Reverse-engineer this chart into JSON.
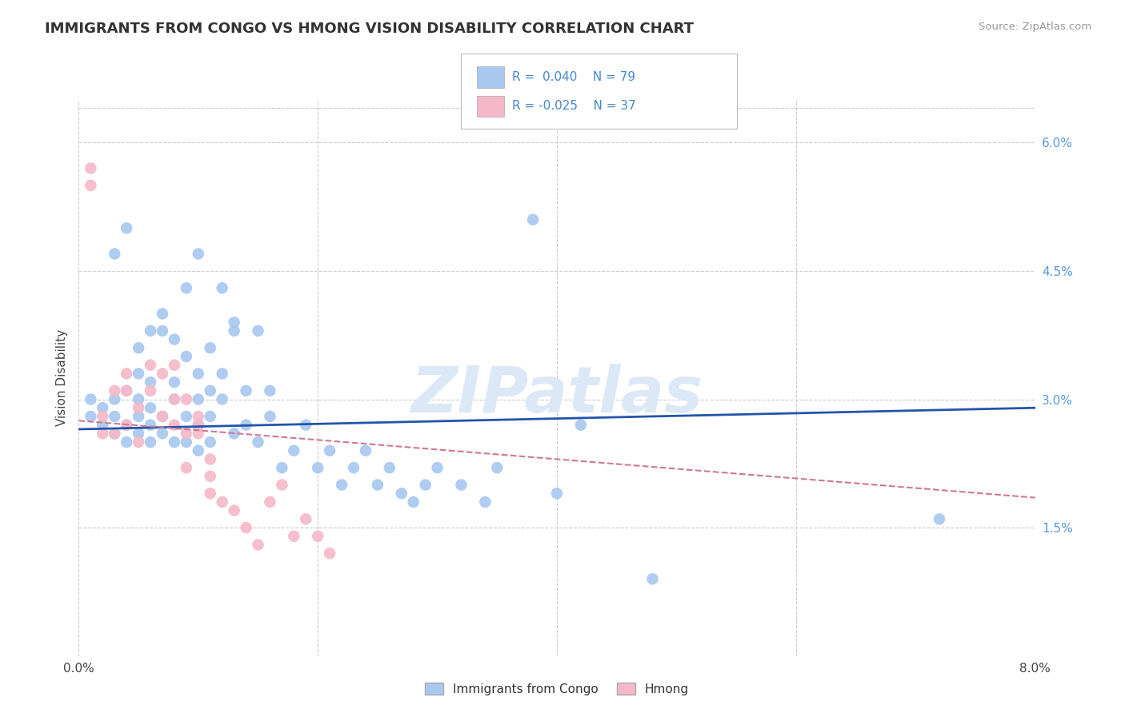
{
  "title": "IMMIGRANTS FROM CONGO VS HMONG VISION DISABILITY CORRELATION CHART",
  "source": "Source: ZipAtlas.com",
  "ylabel": "Vision Disability",
  "xmin": 0.0,
  "xmax": 0.08,
  "ymin": 0.0,
  "ymax": 0.065,
  "xticks": [
    0.0,
    0.02,
    0.04,
    0.06,
    0.08
  ],
  "yticks_right": [
    0.015,
    0.03,
    0.045,
    0.06
  ],
  "ytick_right_labels": [
    "1.5%",
    "3.0%",
    "4.5%",
    "6.0%"
  ],
  "grid_color": "#cccccc",
  "background_color": "#ffffff",
  "blue_color": "#A8C8F0",
  "pink_color": "#F5B8C8",
  "blue_line_color": "#2255AA",
  "pink_line_color": "#D07890",
  "watermark_color": "#dce8f5",
  "legend_label1": "Immigrants from Congo",
  "legend_label2": "Hmong",
  "blue_scatter_x": [
    0.001,
    0.001,
    0.002,
    0.002,
    0.003,
    0.003,
    0.003,
    0.004,
    0.004,
    0.004,
    0.005,
    0.005,
    0.005,
    0.005,
    0.006,
    0.006,
    0.006,
    0.006,
    0.007,
    0.007,
    0.007,
    0.008,
    0.008,
    0.008,
    0.009,
    0.009,
    0.009,
    0.01,
    0.01,
    0.01,
    0.01,
    0.011,
    0.011,
    0.011,
    0.012,
    0.012,
    0.013,
    0.013,
    0.014,
    0.014,
    0.015,
    0.015,
    0.016,
    0.016,
    0.017,
    0.018,
    0.019,
    0.02,
    0.021,
    0.022,
    0.023,
    0.024,
    0.025,
    0.026,
    0.027,
    0.028,
    0.029,
    0.03,
    0.032,
    0.034,
    0.035,
    0.038,
    0.003,
    0.004,
    0.005,
    0.006,
    0.007,
    0.008,
    0.009,
    0.01,
    0.011,
    0.012,
    0.013,
    0.04,
    0.042,
    0.048,
    0.072
  ],
  "blue_scatter_y": [
    0.028,
    0.03,
    0.027,
    0.029,
    0.026,
    0.028,
    0.03,
    0.025,
    0.027,
    0.031,
    0.026,
    0.028,
    0.03,
    0.033,
    0.025,
    0.027,
    0.029,
    0.032,
    0.026,
    0.028,
    0.038,
    0.025,
    0.03,
    0.032,
    0.025,
    0.028,
    0.035,
    0.024,
    0.027,
    0.03,
    0.033,
    0.025,
    0.028,
    0.031,
    0.03,
    0.033,
    0.026,
    0.039,
    0.027,
    0.031,
    0.025,
    0.038,
    0.028,
    0.031,
    0.022,
    0.024,
    0.027,
    0.022,
    0.024,
    0.02,
    0.022,
    0.024,
    0.02,
    0.022,
    0.019,
    0.018,
    0.02,
    0.022,
    0.02,
    0.018,
    0.022,
    0.051,
    0.047,
    0.05,
    0.036,
    0.038,
    0.04,
    0.037,
    0.043,
    0.047,
    0.036,
    0.043,
    0.038,
    0.019,
    0.027,
    0.009,
    0.016
  ],
  "pink_scatter_x": [
    0.001,
    0.001,
    0.002,
    0.002,
    0.003,
    0.003,
    0.004,
    0.004,
    0.004,
    0.005,
    0.005,
    0.006,
    0.006,
    0.007,
    0.007,
    0.008,
    0.008,
    0.009,
    0.009,
    0.01,
    0.01,
    0.011,
    0.011,
    0.012,
    0.013,
    0.014,
    0.015,
    0.016,
    0.017,
    0.018,
    0.019,
    0.02,
    0.021,
    0.008,
    0.009,
    0.01,
    0.011
  ],
  "pink_scatter_y": [
    0.055,
    0.057,
    0.026,
    0.028,
    0.026,
    0.031,
    0.027,
    0.031,
    0.033,
    0.025,
    0.029,
    0.031,
    0.034,
    0.028,
    0.033,
    0.027,
    0.034,
    0.026,
    0.03,
    0.026,
    0.028,
    0.021,
    0.023,
    0.018,
    0.017,
    0.015,
    0.013,
    0.018,
    0.02,
    0.014,
    0.016,
    0.014,
    0.012,
    0.03,
    0.022,
    0.027,
    0.019
  ],
  "blue_trend_x": [
    0.0,
    0.08
  ],
  "blue_trend_y": [
    0.0265,
    0.029
  ],
  "pink_trend_x": [
    0.0,
    0.08
  ],
  "pink_trend_y": [
    0.0275,
    0.0185
  ]
}
